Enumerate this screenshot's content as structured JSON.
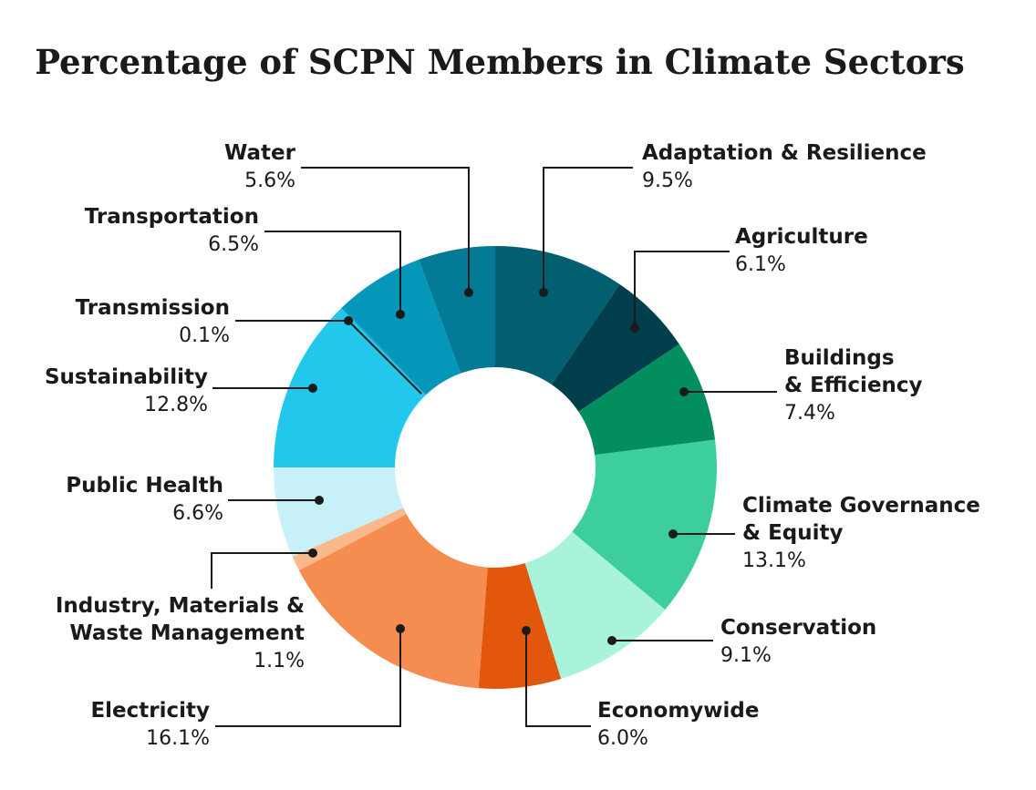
{
  "chart_data": {
    "type": "pie",
    "title": "Percentage of SCPN Members in Climate Sectors",
    "value_suffix": "%",
    "slices": [
      {
        "label": "Adaptation & Resilience",
        "value": 9.5,
        "display": "9.5%",
        "color": "#025f70"
      },
      {
        "label": "Agriculture",
        "value": 6.1,
        "display": "6.1%",
        "color": "#003f4b"
      },
      {
        "label": "Buildings\n& Efficiency",
        "value": 7.4,
        "display": "7.4%",
        "color": "#038f5d"
      },
      {
        "label": "Climate Governance\n& Equity",
        "value": 13.1,
        "display": "13.1%",
        "color": "#3dce9e"
      },
      {
        "label": "Conservation",
        "value": 9.1,
        "display": "9.1%",
        "color": "#a8f3da"
      },
      {
        "label": "Economywide",
        "value": 6.0,
        "display": "6.0%",
        "color": "#e3570d"
      },
      {
        "label": "Electricity",
        "value": 16.1,
        "display": "16.1%",
        "color": "#f58c50"
      },
      {
        "label": "Industry, Materials &\nWaste Management",
        "value": 1.1,
        "display": "1.1%",
        "color": "#f9b98d"
      },
      {
        "label": "Public Health",
        "value": 6.6,
        "display": "6.6%",
        "color": "#c8f0f9"
      },
      {
        "label": "Sustainability",
        "value": 12.8,
        "display": "12.8%",
        "color": "#21c8eb"
      },
      {
        "label": "Transmission",
        "value": 0.1,
        "display": "0.1%",
        "color": "#0c8fb8"
      },
      {
        "label": "Transportation",
        "value": 6.5,
        "display": "6.5%",
        "color": "#0497ba"
      },
      {
        "label": "Water",
        "value": 5.6,
        "display": "5.6%",
        "color": "#047b96"
      }
    ]
  }
}
